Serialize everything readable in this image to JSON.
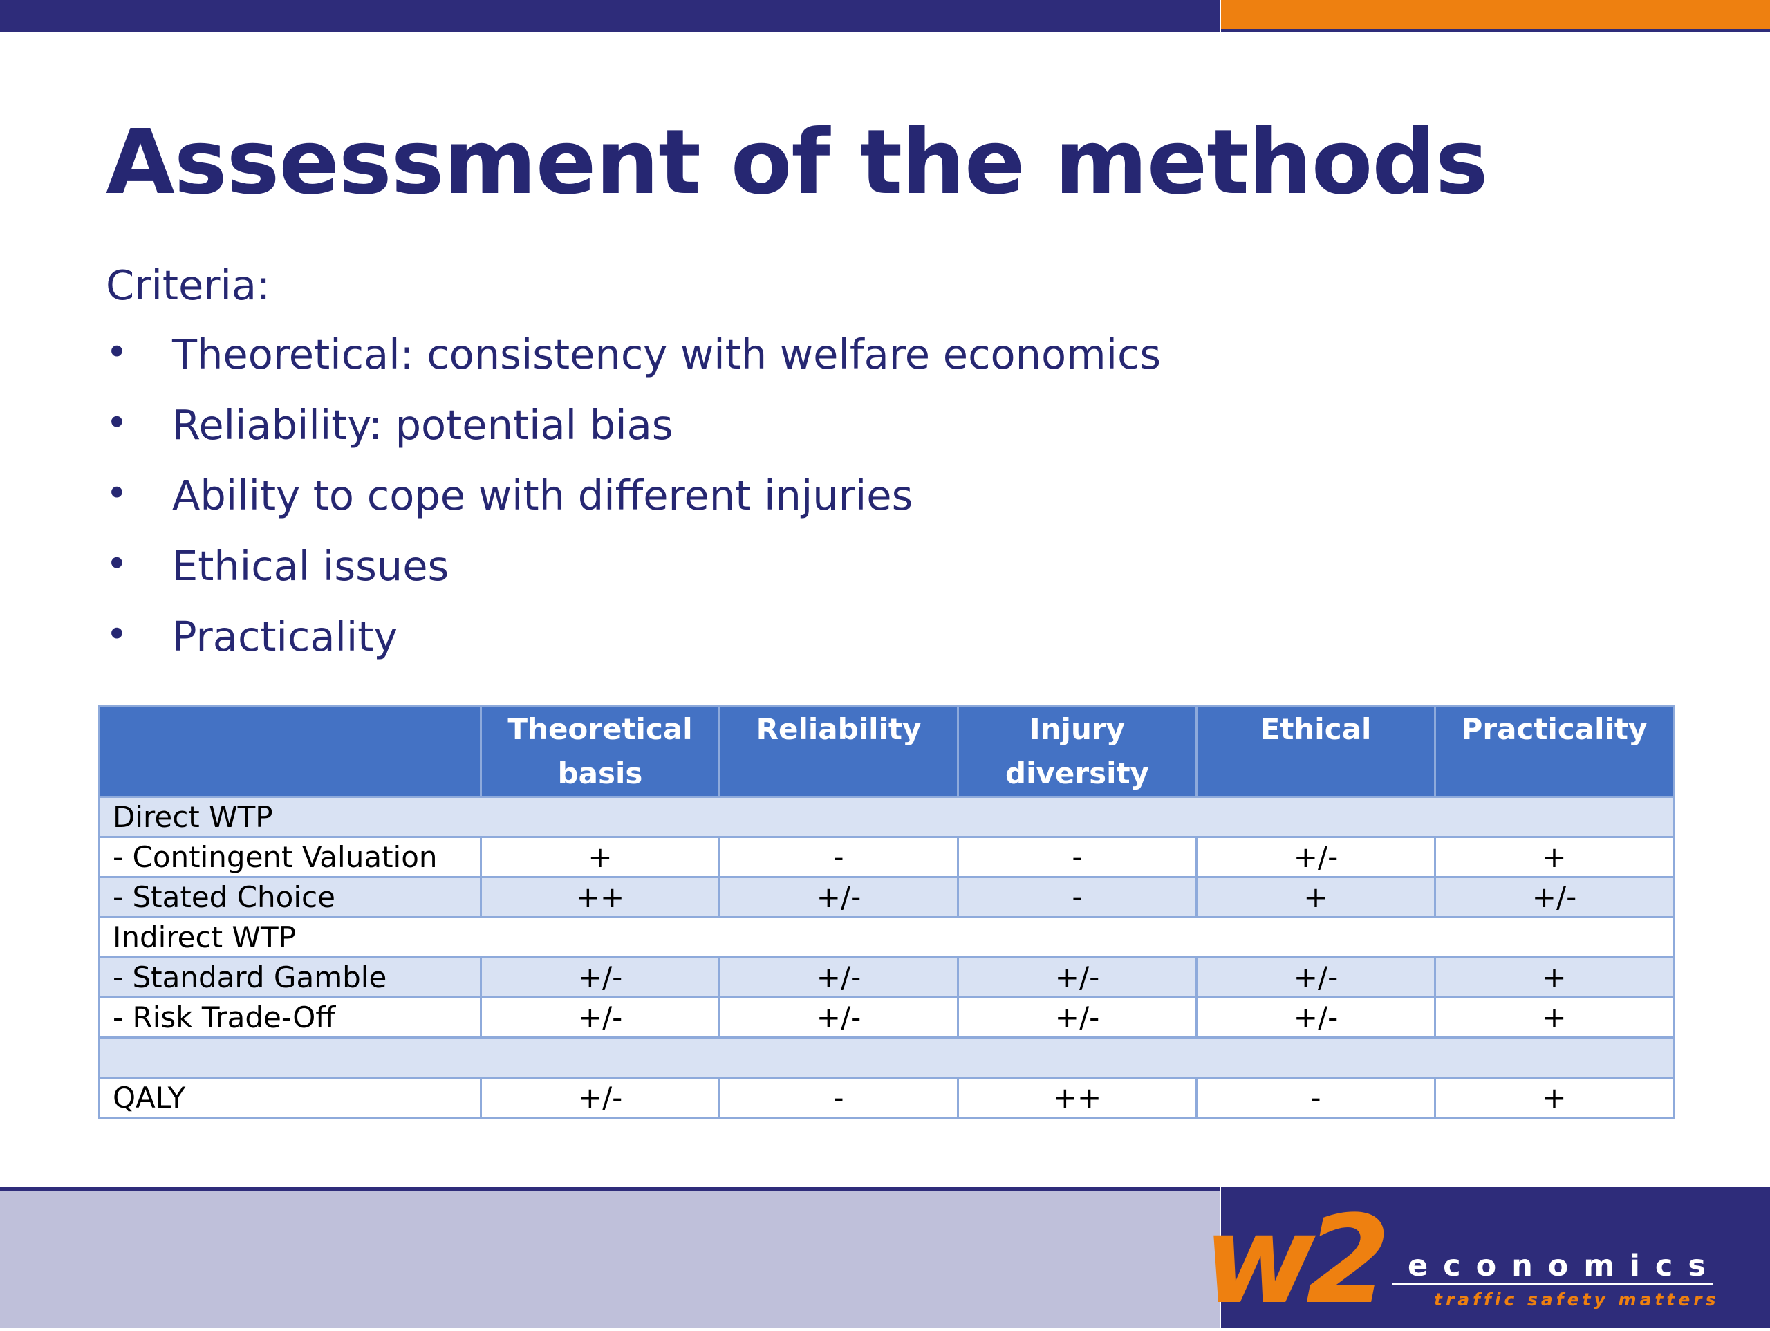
{
  "slide": {
    "title": "Assessment of the methods",
    "criteria_heading": "Criteria:",
    "bullets": [
      "Theoretical: consistency with welfare economics",
      "Reliability: potential bias",
      "Ability to cope with different injuries",
      "Ethical issues",
      "Practicality"
    ],
    "bullet_glyph": "•"
  },
  "table": {
    "headers": [
      [
        "Theoretical",
        "basis"
      ],
      [
        "Reliability"
      ],
      [
        "Injury",
        "diversity"
      ],
      [
        "Ethical"
      ],
      [
        "Practicality"
      ]
    ],
    "rows": [
      {
        "label": "Direct WTP",
        "values": []
      },
      {
        "label": " - Contingent Valuation",
        "values": [
          "+",
          "-",
          "-",
          "+/-",
          "+"
        ]
      },
      {
        "label": " - Stated Choice",
        "values": [
          "++",
          "+/-",
          "-",
          "+",
          "+/-"
        ]
      },
      {
        "label": "Indirect WTP",
        "values": []
      },
      {
        "label": " - Standard Gamble",
        "values": [
          "+/-",
          "+/-",
          "+/-",
          "+/-",
          "+"
        ]
      },
      {
        "label": " - Risk Trade-Off",
        "values": [
          "+/-",
          "+/-",
          "+/-",
          "+/-",
          "+"
        ]
      },
      {
        "label": "",
        "values": []
      },
      {
        "label": "QALY",
        "values": [
          "+/-",
          "-",
          "++",
          "-",
          "+"
        ]
      }
    ]
  },
  "brand": {
    "logo_mark": "w2",
    "name": "economics",
    "tagline": "traffic safety matters"
  },
  "colors": {
    "navy": "#2e2c7a",
    "orange": "#ee8010",
    "table_header": "#4472c4",
    "table_band": "#d9e2f3",
    "table_border": "#8eaadb",
    "footer_lavender": "#bfc0da"
  }
}
